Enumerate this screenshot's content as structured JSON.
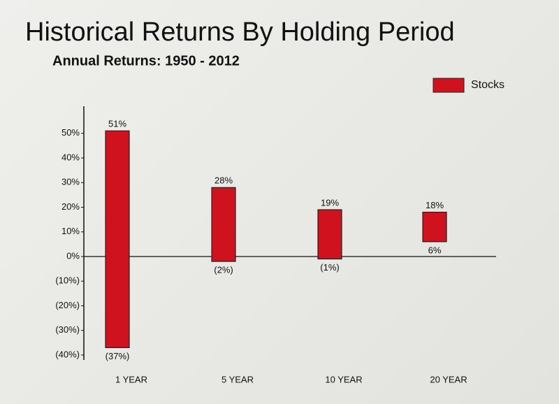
{
  "chart_data": {
    "type": "floating-bar",
    "title": "Historical Returns By Holding Period",
    "subtitle": "Annual Returns: 1950 - 2012",
    "categories": [
      "1 YEAR",
      "5 YEAR",
      "10 YEAR",
      "20 YEAR"
    ],
    "series": [
      {
        "name": "Stocks",
        "color": "#d0121f",
        "values": [
          51,
          28,
          19,
          18
        ],
        "value_labels": [
          "51%",
          "28%",
          "19%",
          "18%"
        ],
        "low_values": [
          -37,
          -2,
          -1,
          6
        ],
        "low_value_labels": [
          "(37%)",
          "(2%)",
          "(1%)",
          "6%"
        ]
      }
    ],
    "ylim": [
      -42,
      61
    ],
    "yticks": [
      {
        "value": 50,
        "label": "50%"
      },
      {
        "value": 40,
        "label": "40%"
      },
      {
        "value": 30,
        "label": "30%"
      },
      {
        "value": 20,
        "label": "20%"
      },
      {
        "value": 10,
        "label": "10%"
      },
      {
        "value": 0,
        "label": "0%"
      },
      {
        "value": -10,
        "label": "(10%)"
      },
      {
        "value": -20,
        "label": "(20%)"
      },
      {
        "value": -30,
        "label": "(30%)"
      },
      {
        "value": -40,
        "label": "(40%)"
      }
    ],
    "legend": "top-right"
  }
}
